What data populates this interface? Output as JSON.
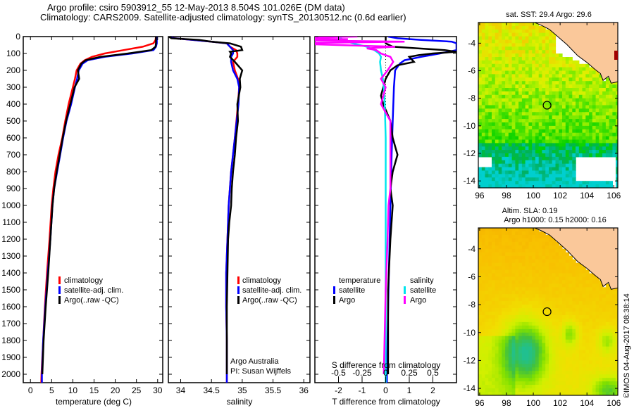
{
  "header": {
    "title_line1": "Argo profile: csiro 5903912_55 12-May-2013 8.504S 101.026E (DM data)",
    "title_line2": "Climatology: CARS2009. Satellite-adjusted climatology: synTS_20130512.nc (0.6d earlier)"
  },
  "colors": {
    "climatology": "#ff0000",
    "satellite": "#0000ff",
    "argo": "#000000",
    "sal_satellite": "#00e5ee",
    "sal_argo": "#ff00ff",
    "land": "#fac89a"
  },
  "chart_data": [
    {
      "type": "line",
      "name": "temperature-profile",
      "xlabel": "temperature (deg C)",
      "ylabel": "",
      "xlim": [
        -1.7,
        31.2
      ],
      "ylim": [
        2050,
        0
      ],
      "xticks": [
        0,
        5,
        10,
        15,
        20,
        25,
        30
      ],
      "yticks": [
        0,
        100,
        200,
        300,
        400,
        500,
        600,
        700,
        800,
        900,
        1000,
        1100,
        1200,
        1300,
        1400,
        1500,
        1600,
        1700,
        1800,
        1900,
        2000
      ],
      "legend": [
        "climatology",
        "satellite-adj. clim.",
        "Argo(..raw -QC)"
      ],
      "legend_placement": "center-left",
      "series": [
        {
          "name": "climatology",
          "color": "red",
          "depth": [
            0,
            20,
            40,
            60,
            80,
            100,
            120,
            140,
            160,
            200,
            250,
            300,
            400,
            500,
            600,
            700,
            800,
            900,
            1000,
            1200,
            1400,
            1600,
            1800,
            2000,
            2050
          ],
          "values": [
            29.6,
            29.5,
            29.0,
            26.5,
            22.0,
            17.5,
            14.5,
            12.8,
            11.8,
            10.9,
            10.5,
            10.0,
            9.0,
            8.2,
            7.5,
            6.6,
            5.9,
            5.4,
            5.0,
            4.5,
            3.9,
            3.4,
            3.0,
            2.6,
            2.55
          ]
        },
        {
          "name": "satellite-adj. clim.",
          "color": "blue",
          "depth": [
            0,
            20,
            40,
            60,
            80,
            100,
            120,
            140,
            160,
            200,
            250,
            300,
            400,
            500,
            600,
            700,
            800,
            900,
            1000,
            1200,
            1400,
            1600,
            1800,
            2000,
            2050
          ],
          "values": [
            29.8,
            29.8,
            29.8,
            29.6,
            29.0,
            24.0,
            17.5,
            13.5,
            12.3,
            11.4,
            11.0,
            10.5,
            9.6,
            8.5,
            7.7,
            7.0,
            6.3,
            5.6,
            5.2,
            4.7,
            4.1,
            3.5,
            3.0,
            2.7,
            2.7
          ]
        },
        {
          "name": "Argo(..raw -QC)",
          "color": "black",
          "depth": [
            0,
            20,
            40,
            60,
            80,
            100,
            120,
            140,
            160,
            200,
            250,
            300,
            400,
            500,
            600,
            700,
            800,
            900,
            1000,
            1200,
            1400,
            1600,
            1800,
            2000
          ],
          "values": [
            29.6,
            29.6,
            29.6,
            29.5,
            28.5,
            23.0,
            16.5,
            13.0,
            12.0,
            11.2,
            11.5,
            10.4,
            9.4,
            8.4,
            7.6,
            6.9,
            6.2,
            5.6,
            5.2,
            4.7,
            4.2,
            3.6,
            3.1,
            2.8
          ]
        }
      ]
    },
    {
      "type": "line",
      "name": "salinity-profile",
      "xlabel": "salinity",
      "xlim": [
        33.8,
        36.1
      ],
      "ylim": [
        2050,
        0
      ],
      "xticks": [
        34,
        34.5,
        35,
        35.5,
        36
      ],
      "xtick_labels": [
        "34",
        "34.5",
        "35",
        "35.5",
        "36"
      ],
      "legend": [
        "climatology",
        "satellite-adj. clim.",
        "Argo(..raw -QC)"
      ],
      "legend_placement": "center-right",
      "annotation": [
        "Argo Australia",
        "PI: Susan Wijffels"
      ],
      "series": [
        {
          "name": "climatology",
          "color": "red",
          "depth": [
            0,
            10,
            20,
            30,
            40,
            60,
            80,
            100,
            120,
            150,
            200,
            250,
            300,
            400,
            600,
            800,
            1000,
            1200,
            1400,
            1600,
            1800,
            2000,
            2050
          ],
          "values": [
            33.82,
            33.9,
            34.2,
            34.5,
            34.75,
            34.8,
            34.9,
            34.92,
            34.92,
            34.85,
            34.88,
            34.93,
            34.95,
            34.93,
            34.88,
            34.82,
            34.78,
            34.76,
            34.74,
            34.74,
            34.75,
            34.75,
            34.75
          ]
        },
        {
          "name": "satellite-adj. clim.",
          "color": "blue",
          "depth": [
            0,
            10,
            20,
            30,
            40,
            60,
            80,
            100,
            120,
            150,
            200,
            250,
            300,
            400,
            600,
            800,
            1000,
            1200,
            1400,
            1600,
            1800,
            2000,
            2050
          ],
          "values": [
            33.8,
            33.9,
            34.2,
            34.5,
            34.75,
            34.8,
            34.85,
            34.85,
            34.82,
            34.82,
            34.85,
            34.92,
            34.95,
            34.94,
            34.88,
            34.82,
            34.78,
            34.76,
            34.74,
            34.74,
            34.75,
            34.75,
            34.75
          ]
        },
        {
          "name": "Argo(..raw -QC)",
          "color": "black",
          "depth": [
            0,
            10,
            20,
            30,
            40,
            60,
            80,
            90,
            100,
            120,
            150,
            200,
            250,
            300,
            400,
            500,
            600,
            700,
            800,
            900,
            1000,
            1100,
            1200,
            1400,
            1600,
            1800,
            2000
          ],
          "values": [
            33.8,
            33.85,
            34.3,
            34.5,
            34.8,
            34.98,
            35.0,
            34.8,
            34.82,
            34.8,
            34.88,
            35.0,
            34.96,
            34.97,
            34.92,
            34.93,
            34.9,
            34.88,
            34.85,
            34.83,
            34.82,
            34.79,
            34.77,
            34.76,
            34.75,
            34.75,
            34.75
          ]
        }
      ]
    },
    {
      "type": "line",
      "name": "difference-profile",
      "xlabel": "T difference from climatology",
      "xlabel_top": "S difference from climatology",
      "xlim": [
        -3.0,
        3.0
      ],
      "ylim": [
        2050,
        0
      ],
      "xticks": [
        -2,
        -1,
        0,
        1,
        2
      ],
      "xticks_s": [
        -0.5,
        -0.25,
        0,
        0.25,
        0.5
      ],
      "xtick_labels_s": [
        "-0.5",
        "-0.25",
        "0",
        "0.25",
        "0.5"
      ],
      "legend": {
        "temperature_header": "temperature",
        "salinity_header": "salinity",
        "items": [
          "satellite",
          "Argo",
          "satellite",
          "Argo"
        ]
      },
      "series": [
        {
          "name": "temperature satellite",
          "color": "blue",
          "depth": [
            0,
            10,
            20,
            30,
            40,
            60,
            80,
            100,
            120,
            140,
            160,
            200,
            300,
            500,
            700,
            1000,
            1500,
            2000,
            2050
          ],
          "values": [
            0.1,
            0.5,
            1.5,
            2.8,
            3.0,
            3.0,
            3.0,
            2.3,
            1.5,
            0.8,
            0.6,
            0.4,
            0.35,
            0.3,
            0.25,
            0.2,
            0.12,
            0.05,
            0.05
          ]
        },
        {
          "name": "temperature Argo",
          "color": "black",
          "depth": [
            0,
            40,
            60,
            80,
            90,
            100,
            110,
            120,
            150,
            170,
            200,
            250,
            300,
            350,
            400,
            500,
            600,
            700,
            800,
            900,
            1000,
            1200,
            1500,
            1800,
            2000
          ],
          "values": [
            0.0,
            0.0,
            0.3,
            2.5,
            3.0,
            2.0,
            1.4,
            1.0,
            1.2,
            0.5,
            0.2,
            0.0,
            -0.1,
            -0.2,
            -0.1,
            0.2,
            0.3,
            0.5,
            0.3,
            0.2,
            0.3,
            0.2,
            0.1,
            0.1,
            0.1
          ]
        },
        {
          "name": "salinity satellite",
          "color": "cyan",
          "depth": [
            0,
            20,
            40,
            60,
            80,
            100,
            120,
            150,
            200,
            250,
            300,
            400,
            600,
            1000,
            1500,
            2000,
            2050
          ],
          "values": [
            -0.5,
            -0.45,
            -0.35,
            -0.2,
            -0.12,
            -0.07,
            -0.05,
            -0.06,
            -0.05,
            -0.03,
            -0.02,
            -0.01,
            0.0,
            0.0,
            0.0,
            0.0,
            0.0
          ]
        },
        {
          "name": "salinity Argo",
          "color": "magenta",
          "depth": [
            0,
            10,
            15,
            20,
            30,
            40,
            60,
            70,
            80,
            100,
            120,
            150,
            200,
            250,
            300,
            400,
            500,
            600,
            700,
            800,
            900,
            1000,
            1200,
            1500,
            2000
          ],
          "values": [
            -0.3,
            -1.2,
            -0.4,
            -1.2,
            0.2,
            -1.1,
            0.1,
            -0.2,
            -0.1,
            -0.05,
            0.05,
            0.08,
            0.02,
            -0.05,
            0.0,
            -0.05,
            0.05,
            0.05,
            0.05,
            0.05,
            0.05,
            0.03,
            0.02,
            0.0,
            -0.02
          ]
        }
      ]
    },
    {
      "type": "heatmap",
      "name": "sst-map",
      "title": "sat. SST: 29.4 Argo: 29.6",
      "xlim": [
        95.9,
        106.3
      ],
      "ylim": [
        -14.5,
        -2.5
      ],
      "xticks": [
        96,
        98,
        100,
        102,
        104,
        106
      ],
      "yticks": [
        -4,
        -6,
        -8,
        -10,
        -12,
        -14
      ],
      "profile_marker": {
        "lon": 101.026,
        "lat": -8.504
      },
      "colormap": [
        "#00cfcf",
        "#00b060",
        "#00d000",
        "#40e000",
        "#a0f000",
        "#e0f000",
        "#f0d000"
      ]
    },
    {
      "type": "heatmap",
      "name": "sla-map",
      "title_line1": "Altim. SLA: 0.19",
      "title_line2": "Argo h1000: 0.15 h2000: 0.16",
      "xlim": [
        95.9,
        106.3
      ],
      "ylim": [
        -14.5,
        -2.5
      ],
      "xticks": [
        96,
        98,
        100,
        102,
        104,
        106
      ],
      "yticks": [
        -4,
        -6,
        -8,
        -10,
        -12,
        -14
      ],
      "profile_marker": {
        "lon": 101.026,
        "lat": -8.504
      },
      "colormap": [
        "#20c090",
        "#40c040",
        "#80e000",
        "#d0f000",
        "#f0e000",
        "#f8c000",
        "#f0a000"
      ]
    }
  ],
  "footer": {
    "credit": "©IMOS 04-Aug-2017 08:38:14"
  }
}
